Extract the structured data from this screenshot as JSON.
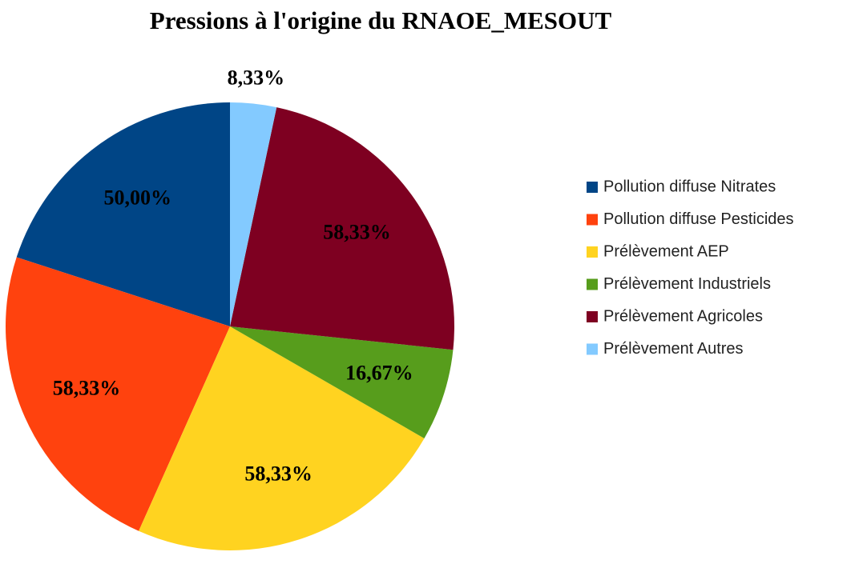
{
  "chart_data": {
    "type": "pie",
    "title": "Pressions à l'origine du RNAOE_MESOUT",
    "categories": [
      "Pollution diffuse Nitrates",
      "Pollution diffuse Pesticides",
      "Prélèvement AEP",
      "Prélèvement Industriels",
      "Prélèvement Agricoles",
      "Prélèvement Autres"
    ],
    "values": [
      50,
      58.33,
      58.33,
      16.67,
      58.33,
      8.33
    ],
    "value_labels": [
      "50,00%",
      "58,33%",
      "58,33%",
      "16,67%",
      "58,33%",
      "8,33%"
    ],
    "colors": [
      "#004586",
      "#ff420e",
      "#ffd320",
      "#579d1c",
      "#7e0021",
      "#83caff"
    ],
    "legend": "right"
  }
}
